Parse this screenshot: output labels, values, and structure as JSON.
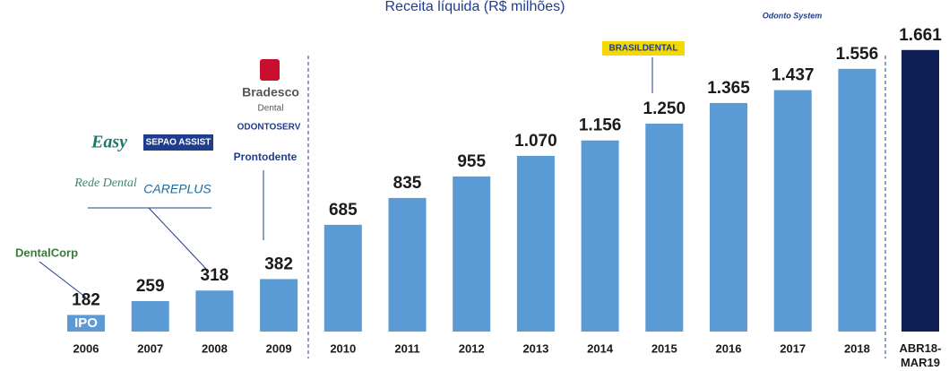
{
  "chart_data": {
    "type": "bar",
    "title": "Receita líquida (R$ milhões)",
    "categories": [
      "2006",
      "2007",
      "2008",
      "2009",
      "2010",
      "2011",
      "2012",
      "2013",
      "2014",
      "2015",
      "2016",
      "2017",
      "2018",
      "ABR18-MAR19"
    ],
    "values": [
      182,
      259,
      318,
      382,
      685,
      835,
      955,
      1070,
      1156,
      1250,
      1365,
      1437,
      1556,
      1661
    ],
    "value_labels": [
      "182",
      "259",
      "318",
      "382",
      "685",
      "835",
      "955",
      "1.070",
      "1.156",
      "1.250",
      "1.365",
      "1.437",
      "1.556",
      "1.661"
    ],
    "colors": [
      "#5b9bd5",
      "#5b9bd5",
      "#5b9bd5",
      "#5b9bd5",
      "#5b9bd5",
      "#5b9bd5",
      "#5b9bd5",
      "#5b9bd5",
      "#5b9bd5",
      "#5b9bd5",
      "#5b9bd5",
      "#5b9bd5",
      "#5b9bd5",
      "#0d1f55"
    ],
    "ylim": [
      89,
      1700
    ],
    "annotations": [
      "IPO",
      "DentalCorp",
      "Easy",
      "SEPAO ASSIST",
      "Rede Dental",
      "CAREPLUS",
      "Bradesco",
      "Dental",
      "ODONTOSERV",
      "Prontodente",
      "BRASILDENTAL",
      "Odonto System"
    ]
  }
}
